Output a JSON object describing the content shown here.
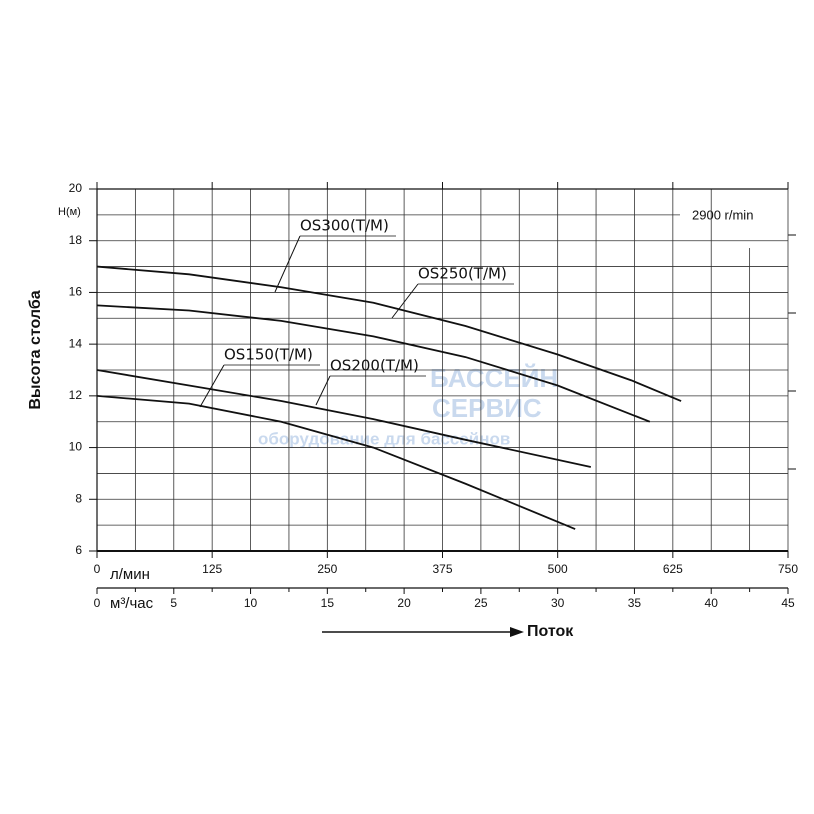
{
  "chart_data": {
    "type": "line",
    "y_label": "Высота столба",
    "y_unit": "H(м)",
    "speed_label": "2900 r/min",
    "x_unit": "л/мин",
    "x2_unit": "м³/час",
    "x_title": "Поток",
    "watermark": [
      "БАССЕЙН",
      "СЕРВИС",
      "оборудование для бассейнов"
    ],
    "xlim": [
      0,
      750
    ],
    "xticks": [
      0,
      125,
      250,
      375,
      500,
      625,
      750
    ],
    "x2lim": [
      0,
      45
    ],
    "x2ticks": [
      0,
      5,
      10,
      15,
      20,
      25,
      30,
      35,
      40,
      45
    ],
    "ylim": [
      6,
      20
    ],
    "yticks": [
      6,
      8,
      10,
      12,
      14,
      16,
      18,
      20
    ],
    "grid": true,
    "series": [
      {
        "name": "OS300(T/M)",
        "color": "#111111",
        "x": [
          0,
          100,
          200,
          300,
          400,
          500,
          580,
          634
        ],
        "values": [
          17,
          16.7,
          16.2,
          15.6,
          14.7,
          13.6,
          12.6,
          11.8
        ]
      },
      {
        "name": "OS250(T/M)",
        "color": "#111111",
        "x": [
          0,
          100,
          200,
          300,
          400,
          500,
          600
        ],
        "values": [
          15.5,
          15.3,
          14.9,
          14.3,
          13.5,
          12.4,
          11.0
        ]
      },
      {
        "name": "OS200(T/M)",
        "color": "#111111",
        "x": [
          0,
          100,
          200,
          300,
          400,
          536
        ],
        "values": [
          13,
          12.4,
          11.8,
          11.1,
          10.3,
          9.25
        ]
      },
      {
        "name": "OS150(T/M)",
        "color": "#111111",
        "x": [
          0,
          100,
          200,
          300,
          400,
          519
        ],
        "values": [
          12,
          11.7,
          11,
          10,
          8.6,
          6.85
        ]
      }
    ]
  }
}
